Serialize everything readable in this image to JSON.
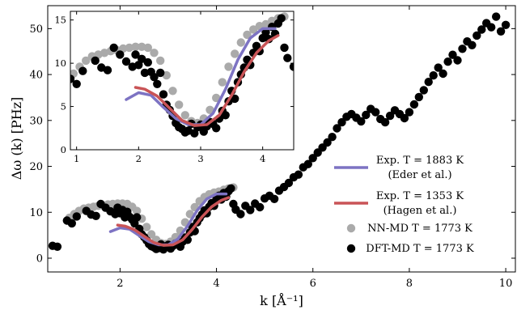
{
  "chart_data": [
    {
      "type": "scatter",
      "xlabel": "k [Å⁻¹]",
      "ylabel": "Δω (k) [PHz]",
      "xlim": [
        0.5,
        10.2
      ],
      "ylim": [
        -3,
        55
      ],
      "xticks": [
        "2",
        "4",
        "6",
        "8",
        "10"
      ],
      "yticks": [
        "0",
        "10",
        "20",
        "30",
        "40",
        "50"
      ],
      "legend_position": "lower-right",
      "legend": [
        {
          "line1": "Exp. T = 1883 K",
          "line2": "(Eder et al.)",
          "color": "#7d73c3",
          "kind": "line"
        },
        {
          "line1": "Exp. T = 1353 K",
          "line2": "(Hagen et al.)",
          "color": "#c95457",
          "kind": "line"
        },
        {
          "line1": "NN-MD T = 1773 K",
          "color": "#aaaaaa",
          "kind": "marker"
        },
        {
          "line1": "DFT-MD T = 1773 K",
          "color": "#000000",
          "kind": "marker"
        }
      ],
      "series": [
        {
          "name": "Exp. T = 1883 K (Eder et al.)",
          "color": "#7d73c3",
          "kind": "line",
          "x": [
            1.8,
            2.0,
            2.2,
            2.4,
            2.6,
            2.8,
            3.0,
            3.2,
            3.4,
            3.6,
            3.8,
            4.0,
            4.2
          ],
          "y": [
            5.8,
            6.6,
            6.3,
            4.9,
            3.6,
            2.9,
            2.9,
            4.2,
            7.0,
            10.4,
            12.9,
            14.0,
            14.0
          ]
        },
        {
          "name": "Exp. T = 1353 K (Hagen et al.)",
          "color": "#c95457",
          "kind": "line",
          "x": [
            1.95,
            2.1,
            2.3,
            2.5,
            2.7,
            2.9,
            3.1,
            3.3,
            3.5,
            3.7,
            3.9,
            4.1,
            4.25
          ],
          "y": [
            7.2,
            7.0,
            6.2,
            4.8,
            3.4,
            2.8,
            2.9,
            4.0,
            6.3,
            9.0,
            11.2,
            12.6,
            13.2
          ]
        },
        {
          "name": "NN-MD T = 1773 K",
          "color": "#aaaaaa",
          "kind": "marker",
          "x": [
            0.95,
            1.05,
            1.15,
            1.25,
            1.35,
            1.45,
            1.55,
            1.65,
            1.75,
            1.85,
            1.95,
            2.05,
            2.15,
            2.25,
            2.35,
            2.45,
            2.55,
            2.65,
            2.75,
            2.85,
            2.95,
            3.05,
            3.15,
            3.25,
            3.35,
            3.45,
            3.55,
            3.65,
            3.75,
            3.85,
            3.95,
            4.05,
            4.15,
            4.25,
            4.35
          ],
          "y": [
            8.8,
            9.6,
            10.3,
            10.8,
            11.0,
            11.2,
            11.4,
            11.5,
            11.7,
            11.8,
            11.9,
            11.9,
            11.8,
            11.2,
            10.3,
            8.6,
            6.8,
            5.2,
            4.0,
            3.3,
            3.1,
            3.6,
            4.6,
            6.0,
            7.8,
            9.6,
            11.1,
            12.4,
            13.3,
            13.9,
            14.3,
            14.5,
            14.9,
            15.2,
            15.4
          ]
        },
        {
          "name": "DFT-MD T = 1773 K",
          "color": "#000000",
          "kind": "marker",
          "x": [
            0.6,
            0.7,
            0.9,
            1.0,
            1.1,
            1.3,
            1.4,
            1.5,
            1.6,
            1.7,
            1.8,
            1.9,
            1.95,
            2.0,
            2.05,
            2.1,
            2.15,
            2.2,
            2.25,
            2.3,
            2.35,
            2.4,
            2.45,
            2.5,
            2.55,
            2.6,
            2.65,
            2.7,
            2.75,
            2.8,
            2.85,
            2.9,
            2.95,
            3.0,
            3.05,
            3.1,
            3.15,
            3.2,
            3.25,
            3.3,
            3.35,
            3.4,
            3.45,
            3.5,
            3.55,
            3.6,
            3.65,
            3.7,
            3.75,
            3.8,
            3.85,
            3.9,
            3.95,
            4.0,
            4.05,
            4.1,
            4.15,
            4.2,
            4.25,
            4.3,
            4.35,
            4.4,
            4.5,
            4.6,
            4.7,
            4.8,
            4.9,
            5.0,
            5.1,
            5.2,
            5.3,
            5.4,
            5.5,
            5.6,
            5.7,
            5.8,
            5.9,
            6.0,
            6.1,
            6.2,
            6.3,
            6.4,
            6.5,
            6.6,
            6.7,
            6.8,
            6.9,
            7.0,
            7.1,
            7.2,
            7.3,
            7.4,
            7.5,
            7.6,
            7.7,
            7.8,
            7.9,
            8.0,
            8.1,
            8.2,
            8.3,
            8.4,
            8.5,
            8.6,
            8.7,
            8.8,
            8.9,
            9.0,
            9.1,
            9.2,
            9.3,
            9.4,
            9.5,
            9.6,
            9.7,
            9.8,
            9.9,
            10.0
          ],
          "y": [
            2.7,
            2.5,
            8.2,
            7.6,
            9.1,
            10.3,
            9.5,
            9.2,
            11.8,
            11.0,
            10.2,
            9.6,
            11.0,
            9.8,
            10.5,
            8.9,
            10.1,
            9.0,
            8.4,
            7.6,
            8.9,
            6.4,
            5.2,
            4.6,
            3.9,
            3.1,
            2.6,
            2.4,
            2.0,
            2.2,
            3.0,
            1.9,
            2.6,
            2.9,
            2.1,
            2.7,
            3.2,
            3.0,
            2.5,
            3.6,
            4.5,
            4.0,
            5.6,
            6.8,
            5.9,
            7.8,
            8.7,
            9.5,
            10.4,
            9.8,
            11.2,
            12.0,
            11.4,
            12.9,
            13.6,
            12.8,
            14.2,
            13.4,
            14.6,
            15.2,
            11.8,
            10.6,
            9.6,
            11.4,
            10.5,
            11.9,
            11.1,
            13.0,
            13.6,
            12.9,
            14.7,
            15.5,
            16.4,
            17.6,
            18.2,
            19.8,
            20.5,
            21.8,
            23.0,
            24.1,
            25.2,
            26.4,
            28.3,
            29.6,
            30.8,
            31.4,
            30.6,
            29.8,
            31.2,
            32.5,
            31.8,
            30.3,
            29.6,
            31.0,
            32.2,
            31.4,
            30.5,
            31.8,
            33.5,
            35.1,
            36.6,
            38.4,
            39.8,
            41.5,
            40.2,
            42.8,
            44.3,
            43.1,
            45.6,
            47.2,
            46.4,
            48.5,
            49.8,
            51.2,
            50.3,
            52.6,
            49.4,
            50.8
          ]
        }
      ]
    },
    {
      "type": "scatter",
      "role": "inset",
      "xlim": [
        0.9,
        4.5
      ],
      "ylim": [
        0,
        16
      ],
      "xticks": [
        "1",
        "2",
        "3",
        "4"
      ],
      "yticks": [
        "0",
        "5",
        "10",
        "15"
      ],
      "series_ref": "same as main chart, zoomed to k = 0.9–4.5"
    }
  ]
}
